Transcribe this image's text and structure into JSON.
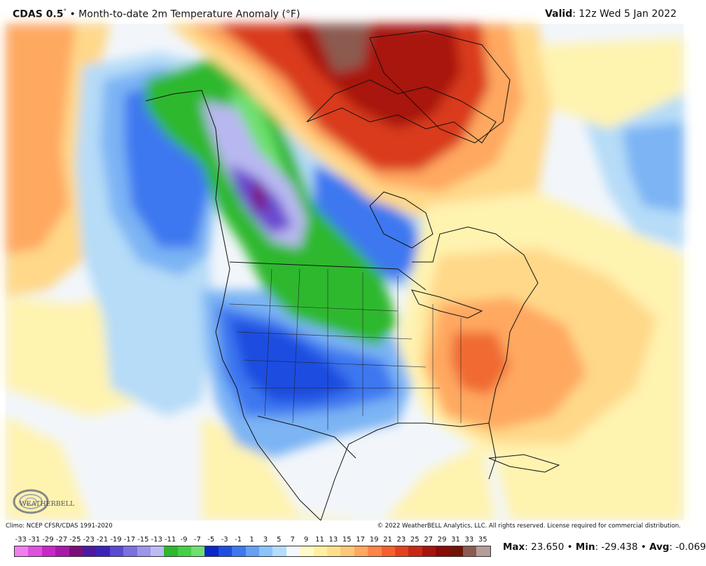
{
  "header": {
    "model": "CDAS 0.5",
    "degree": "°",
    "bullet": "•",
    "title": "Month-to-date 2m Temperature Anomaly (°F)",
    "valid_label": "Valid",
    "valid_value": ": 12z Wed 5 Jan 2022"
  },
  "footer": {
    "climo": "Climo: NCEP CFSR/CDAS 1991-2020",
    "copyright": "© 2022 WeatherBELL Analytics, LLC. All rights reserved. License required for commercial distribution."
  },
  "logo": {
    "text": "WEATHERBELL",
    "icon": "weatherbell-swirl-logo"
  },
  "scale": {
    "labels": [
      "-33",
      "-31",
      "-29",
      "-27",
      "-25",
      "-23",
      "-21",
      "-19",
      "-17",
      "-15",
      "-13",
      "-11",
      "-9",
      "-7",
      "-5",
      "-3",
      "-1",
      "1",
      "3",
      "5",
      "7",
      "9",
      "11",
      "13",
      "15",
      "17",
      "19",
      "21",
      "23",
      "25",
      "27",
      "29",
      "31",
      "33",
      "35"
    ],
    "colors": [
      "#f07ef0",
      "#e050e0",
      "#c828c8",
      "#a81aa8",
      "#7a0f7a",
      "#4b1aa0",
      "#3a24b8",
      "#5a4ad0",
      "#7a70e0",
      "#9a96ea",
      "#bcbcf2",
      "#2db82d",
      "#46d046",
      "#6ee06e",
      "#0a28c8",
      "#1e4ee0",
      "#3c78f0",
      "#64a0f6",
      "#8cc4fa",
      "#b4dcfc",
      "#f4f8fc",
      "#fffac8",
      "#fff0a0",
      "#ffe08a",
      "#ffc878",
      "#ffa860",
      "#ff8448",
      "#f66030",
      "#e44020",
      "#c82814",
      "#a8140c",
      "#8a0a08",
      "#701408",
      "#8c5a50",
      "#b49c98"
    ],
    "colors_note": ""
  },
  "stats": {
    "max_label": "Max",
    "max_value": ": 23.650",
    "min_label": "Min",
    "min_value": ": -29.438",
    "avg_label": "Avg",
    "avg_value": ": -0.069",
    "sep": "•"
  },
  "map": {
    "colors": {
      "ocean_neutral": "#f2f6fb",
      "light_yellow": "#fff3b0",
      "yellow_orange": "#ffd889",
      "orange": "#ffa860",
      "red_orange": "#f06a32",
      "red": "#d93a1c",
      "dark_red": "#a8140c",
      "brown": "#8c5a50",
      "light_blue": "#b6dcf8",
      "sky_blue": "#7cb4f4",
      "blue": "#3c78f0",
      "deep_blue": "#1e4ee0",
      "green": "#2db82d",
      "light_green": "#6ee06e",
      "lavender": "#b8b8f0",
      "purple": "#6a4ad0",
      "dark_purple": "#7a0f7a"
    }
  }
}
